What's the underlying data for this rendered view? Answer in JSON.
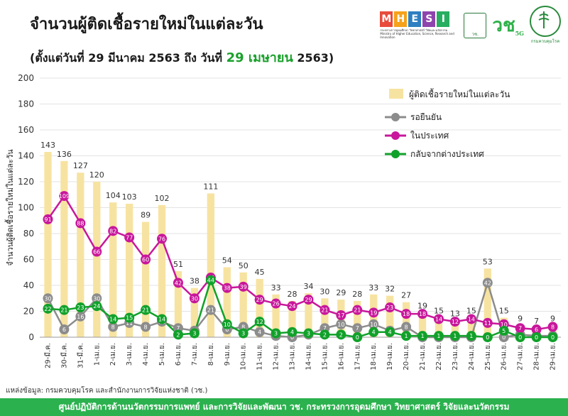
{
  "header": {
    "title": "จำนวนผู้ติดเชื้อรายใหม่ในแต่ละวัน",
    "subtitle_prefix": "(ตั้งแต่วันที่ 29 มีนาคม 2563 ถึง วันที่",
    "subtitle_highlight": "29 เมษายน",
    "subtitle_suffix": "2563)"
  },
  "logos": {
    "mhesi_letters": [
      "M",
      "H",
      "E",
      "S",
      "I"
    ],
    "mhesi_colors": [
      "#e84b3c",
      "#f6a21a",
      "#2d7fc1",
      "#8e44ad",
      "#27ae60"
    ],
    "mhesi_caption": "กระทรวงการอุดมศึกษา วิทยาศาสตร์ วิจัยและนวัตกรรม",
    "mhesi_caption_en": "Ministry of Higher Education, Science, Research and Innovation",
    "seal_label": "วช.",
    "seal_caption": "NRCT",
    "v_logo": "วช",
    "v_logo_sub": "5G",
    "moph_caption": "กรมควบคุมโรค"
  },
  "chart_data": {
    "type": "bar+line",
    "ylabel": "จำนวนผู้ติดเชื้อรายใหม่ในแต่ละวัน",
    "ylim": [
      0,
      200
    ],
    "yticks": [
      0,
      20,
      40,
      60,
      80,
      100,
      120,
      140,
      160,
      180,
      200
    ],
    "grid": true,
    "legend_position": "top-right",
    "categories": [
      "29-มี.ค.",
      "30-มี.ค.",
      "31-มี.ค.",
      "1-เม.ย.",
      "2-เม.ย.",
      "3-เม.ย.",
      "4-เม.ย.",
      "5-เม.ย.",
      "6-เม.ย.",
      "7-เม.ย.",
      "8-เม.ย.",
      "9-เม.ย.",
      "10-เม.ย.",
      "11-เม.ย.",
      "12-เม.ย.",
      "13-เม.ย.",
      "14-เม.ย.",
      "15-เม.ย.",
      "16-เม.ย.",
      "17-เม.ย.",
      "18-เม.ย.",
      "19-เม.ย.",
      "20-เม.ย.",
      "21-เม.ย.",
      "22-เม.ย.",
      "23-เม.ย.",
      "24-เม.ย.",
      "25-เม.ย.",
      "26-เม.ย.",
      "27-เม.ย.",
      "28-เม.ย.",
      "29-เม.ย."
    ],
    "bars": {
      "name": "ผู้ติดเชื้อรายใหม่ในแต่ละวัน",
      "color": "#f7e3a1",
      "values": [
        143,
        136,
        127,
        120,
        104,
        103,
        89,
        102,
        51,
        38,
        111,
        54,
        50,
        45,
        33,
        28,
        34,
        30,
        29,
        28,
        33,
        32,
        27,
        19,
        15,
        13,
        15,
        53,
        15,
        9,
        7,
        9
      ]
    },
    "series": [
      {
        "name": "รอยืนยัน",
        "color": "#8c8c8c",
        "values": [
          30,
          6,
          16,
          30,
          8,
          11,
          8,
          12,
          7,
          5,
          21,
          6,
          8,
          4,
          1,
          0,
          2,
          7,
          10,
          7,
          10,
          5,
          8,
          0,
          0,
          0,
          0,
          42,
          0,
          2,
          1,
          1
        ]
      },
      {
        "name": "ในประเทศ",
        "color": "#c8179b",
        "values": [
          91,
          109,
          88,
          66,
          82,
          77,
          60,
          76,
          42,
          30,
          46,
          38,
          39,
          29,
          26,
          24,
          29,
          21,
          17,
          21,
          19,
          23,
          18,
          18,
          14,
          12,
          14,
          11,
          10,
          7,
          6,
          8
        ]
      },
      {
        "name": "กลับจากต่างประเทศ",
        "color": "#11a12a",
        "values": [
          22,
          21,
          23,
          24,
          14,
          15,
          21,
          14,
          2,
          3,
          44,
          10,
          3,
          12,
          3,
          4,
          3,
          2,
          2,
          0,
          4,
          4,
          1,
          1,
          1,
          1,
          1,
          0,
          5,
          0,
          0,
          0
        ]
      }
    ]
  },
  "source": "แหล่งข้อมูล: กรมควบคุมโรค และสำนักงานการวิจัยแห่งชาติ (วช.)",
  "footer": "ศูนย์ปฏิบัติการด้านนวัตกรรมการแพทย์ และการวิจัยและพัฒนา   วช.   กระทรวงการอุดมศึกษา วิทยาศาสตร์ วิจัยและนวัตกรรม"
}
